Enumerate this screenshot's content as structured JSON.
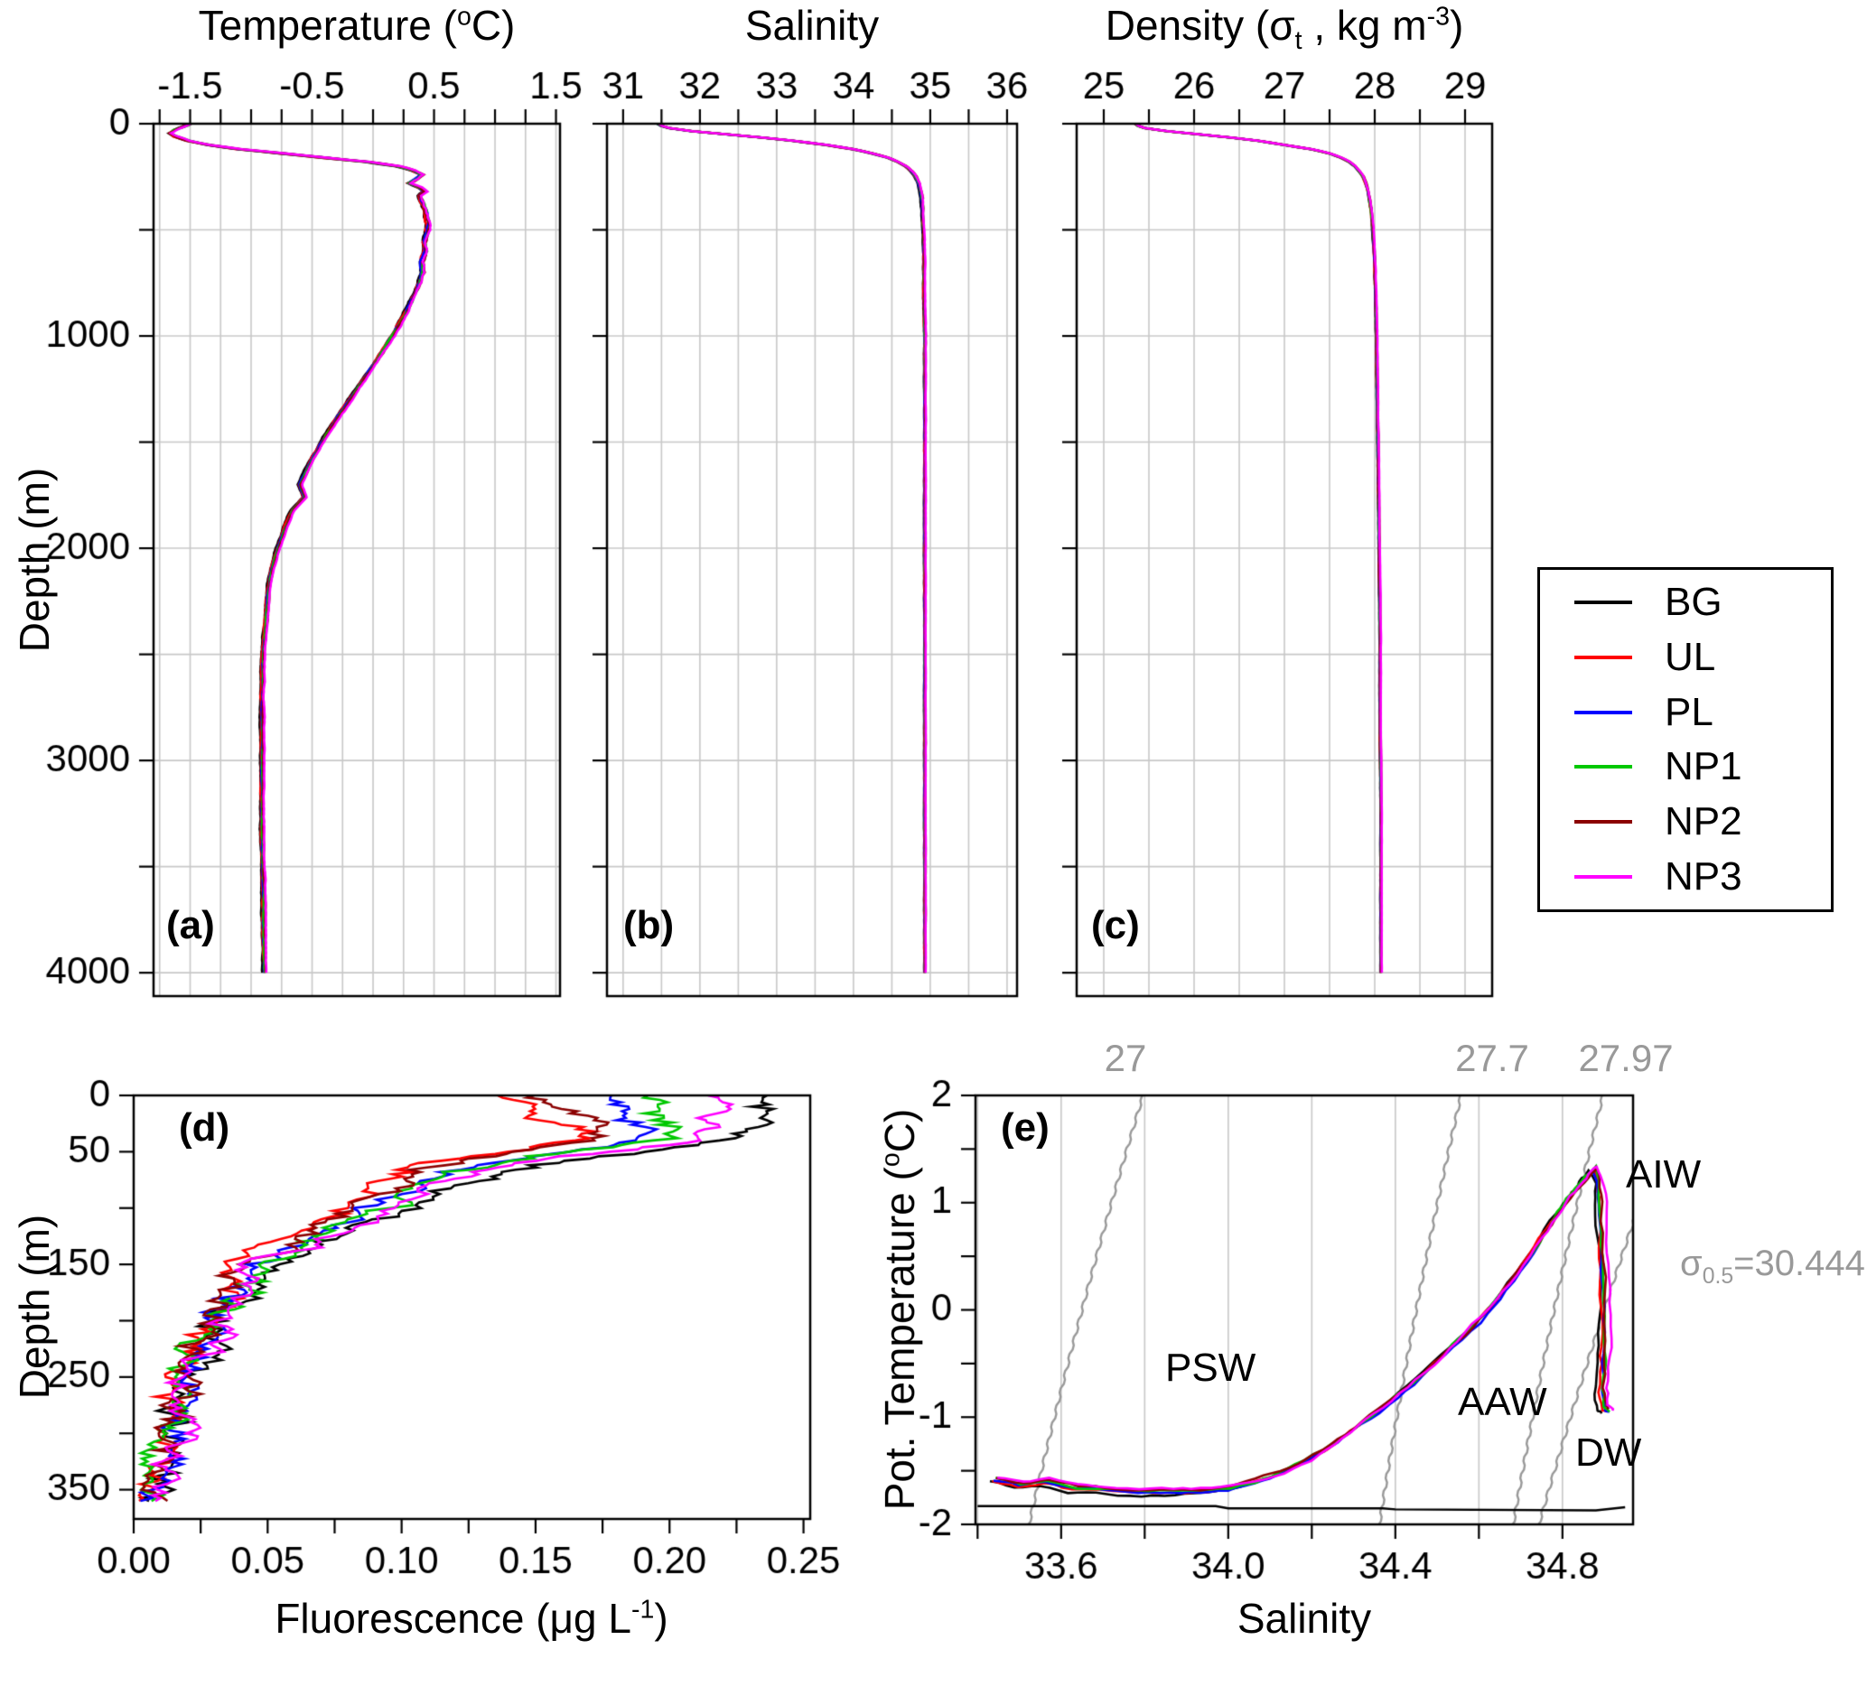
{
  "figure": {
    "bg": "#ffffff",
    "grid_color": "#c8c8c8",
    "axis_color": "#000000",
    "iso_color": "#999999"
  },
  "legend": {
    "entries": [
      {
        "label": "BG",
        "color": "#000000"
      },
      {
        "label": "UL",
        "color": "#ff0000"
      },
      {
        "label": "PL",
        "color": "#0000ff"
      },
      {
        "label": "NP1",
        "color": "#00c800"
      },
      {
        "label": "NP2",
        "color": "#8b0000"
      },
      {
        "label": "NP3",
        "color": "#ff00ff"
      }
    ]
  },
  "labels": {
    "temp_title": {
      "pre": "Temperature (",
      "sup": "o",
      "post": "C)"
    },
    "salinity_title": "Salinity",
    "density_title": {
      "pre": "Density (σ",
      "sub": "t",
      "mid": " , kg m",
      "sup": "-3",
      "post": ")"
    },
    "depth_axis": "Depth (m)",
    "fluor_axis": {
      "pre": "Fluorescence (μg L",
      "sup": "-1",
      "post": ")"
    },
    "pot_temp_axis": {
      "pre": "Pot. Temperature (",
      "sup": "o",
      "post": "C)"
    },
    "salinity_axis": "Salinity",
    "panel_letters": {
      "a": "(a)",
      "b": "(b)",
      "c": "(c)",
      "d": "(d)",
      "e": "(e)"
    },
    "water_masses": {
      "psw": "PSW",
      "aaw": "AAW",
      "aiw": "AIW",
      "dw": "DW"
    },
    "iso_labels": {
      "i27": "27",
      "i277": "27.7",
      "i2797": "27.97"
    },
    "sigma05": {
      "pre": "σ",
      "sub": "0.5",
      "post": "=30.444"
    }
  },
  "chart_data": [
    {
      "id": "a",
      "type": "line",
      "panel": "(a)",
      "title": "Temperature (°C)",
      "ylabel": "Depth (m)",
      "xlim": [
        -1.8,
        1.533
      ],
      "ylim": [
        0,
        4110
      ],
      "x_ticks": [
        [
          -1.5,
          "-1.5"
        ],
        [
          -0.5,
          "-0.5"
        ],
        [
          0.5,
          "0.5"
        ],
        [
          1.5,
          "1.5"
        ]
      ],
      "x_tick_step": 0.25,
      "y_tick_step": 500,
      "y_grid_step": 500,
      "grid": true,
      "y_ticks": [
        [
          0,
          "0"
        ],
        [
          1000,
          "1000"
        ],
        [
          2000,
          "2000"
        ],
        [
          3000,
          "3000"
        ],
        [
          4000,
          "4000"
        ]
      ],
      "series_labels": [
        "BG",
        "UL",
        "PL",
        "NP1",
        "NP2",
        "NP3"
      ],
      "profile": [
        [
          0,
          -1.5
        ],
        [
          15,
          -1.56
        ],
        [
          30,
          -1.63
        ],
        [
          45,
          -1.66
        ],
        [
          60,
          -1.62
        ],
        [
          80,
          -1.52
        ],
        [
          100,
          -1.35
        ],
        [
          120,
          -1.1
        ],
        [
          140,
          -0.75
        ],
        [
          160,
          -0.4
        ],
        [
          180,
          -0.05
        ],
        [
          200,
          0.2
        ],
        [
          220,
          0.33
        ],
        [
          240,
          0.4
        ],
        [
          260,
          0.36
        ],
        [
          280,
          0.3
        ],
        [
          300,
          0.38
        ],
        [
          320,
          0.42
        ],
        [
          340,
          0.38
        ],
        [
          370,
          0.4
        ],
        [
          400,
          0.42
        ],
        [
          440,
          0.44
        ],
        [
          480,
          0.45
        ],
        [
          520,
          0.44
        ],
        [
          560,
          0.42
        ],
        [
          600,
          0.43
        ],
        [
          650,
          0.4
        ],
        [
          700,
          0.41
        ],
        [
          750,
          0.38
        ],
        [
          800,
          0.34
        ],
        [
          850,
          0.3
        ],
        [
          900,
          0.26
        ],
        [
          950,
          0.21
        ],
        [
          1000,
          0.16
        ],
        [
          1100,
          0.05
        ],
        [
          1200,
          -0.07
        ],
        [
          1300,
          -0.19
        ],
        [
          1400,
          -0.31
        ],
        [
          1500,
          -0.42
        ],
        [
          1600,
          -0.52
        ],
        [
          1700,
          -0.6
        ],
        [
          1760,
          -0.56
        ],
        [
          1820,
          -0.66
        ],
        [
          1900,
          -0.72
        ],
        [
          2000,
          -0.78
        ],
        [
          2100,
          -0.83
        ],
        [
          2200,
          -0.86
        ],
        [
          2350,
          -0.88
        ],
        [
          2500,
          -0.9
        ],
        [
          2700,
          -0.91
        ],
        [
          3000,
          -0.91
        ],
        [
          3300,
          -0.91
        ],
        [
          3600,
          -0.9
        ],
        [
          4000,
          -0.89
        ]
      ]
    },
    {
      "id": "b",
      "type": "line",
      "panel": "(b)",
      "title": "Salinity",
      "ylabel": "Depth (m)",
      "xlim": [
        30.79,
        36.13
      ],
      "ylim": [
        0,
        4110
      ],
      "x_ticks": [
        [
          31,
          "31"
        ],
        [
          32,
          "32"
        ],
        [
          33,
          "33"
        ],
        [
          34,
          "34"
        ],
        [
          35,
          "35"
        ],
        [
          36,
          "36"
        ]
      ],
      "x_tick_step": 0.5,
      "y_tick_step": 500,
      "y_grid_step": 500,
      "grid": true,
      "y_ticks": [
        [
          0,
          "0"
        ],
        [
          1000,
          "1000"
        ],
        [
          2000,
          "2000"
        ],
        [
          3000,
          "3000"
        ],
        [
          4000,
          "4000"
        ]
      ],
      "series_labels": [
        "BG",
        "UL",
        "PL",
        "NP1",
        "NP2",
        "NP3"
      ],
      "profile": [
        [
          0,
          31.45
        ],
        [
          10,
          31.5
        ],
        [
          20,
          31.6
        ],
        [
          35,
          31.9
        ],
        [
          50,
          32.35
        ],
        [
          65,
          32.8
        ],
        [
          80,
          33.2
        ],
        [
          100,
          33.65
        ],
        [
          120,
          34.0
        ],
        [
          140,
          34.25
        ],
        [
          160,
          34.45
        ],
        [
          180,
          34.58
        ],
        [
          200,
          34.68
        ],
        [
          225,
          34.76
        ],
        [
          250,
          34.81
        ],
        [
          280,
          34.85
        ],
        [
          310,
          34.87
        ],
        [
          350,
          34.89
        ],
        [
          400,
          34.9
        ],
        [
          500,
          34.91
        ],
        [
          650,
          34.92
        ],
        [
          800,
          34.92
        ],
        [
          1000,
          34.93
        ],
        [
          1300,
          34.93
        ],
        [
          1600,
          34.93
        ],
        [
          2000,
          34.93
        ],
        [
          2400,
          34.93
        ],
        [
          2800,
          34.93
        ],
        [
          3200,
          34.93
        ],
        [
          3600,
          34.93
        ],
        [
          4000,
          34.93
        ]
      ]
    },
    {
      "id": "c",
      "type": "line",
      "panel": "(c)",
      "title": "Density (σt , kg m⁻³)",
      "ylabel": "Depth (m)",
      "xlim": [
        24.7,
        29.3
      ],
      "ylim": [
        0,
        4110
      ],
      "x_ticks": [
        [
          25,
          "25"
        ],
        [
          26,
          "26"
        ],
        [
          27,
          "27"
        ],
        [
          28,
          "28"
        ],
        [
          29,
          "29"
        ]
      ],
      "x_tick_step": 0.5,
      "y_tick_step": 500,
      "y_grid_step": 500,
      "grid": true,
      "y_ticks": [
        [
          0,
          "0"
        ],
        [
          1000,
          "1000"
        ],
        [
          2000,
          "2000"
        ],
        [
          3000,
          "3000"
        ],
        [
          4000,
          "4000"
        ]
      ],
      "series_labels": [
        "BG",
        "UL",
        "PL",
        "NP1",
        "NP2",
        "NP3"
      ],
      "profile": [
        [
          0,
          25.35
        ],
        [
          10,
          25.38
        ],
        [
          20,
          25.45
        ],
        [
          35,
          25.7
        ],
        [
          50,
          26.05
        ],
        [
          65,
          26.4
        ],
        [
          80,
          26.7
        ],
        [
          100,
          27.0
        ],
        [
          120,
          27.3
        ],
        [
          140,
          27.5
        ],
        [
          160,
          27.63
        ],
        [
          180,
          27.72
        ],
        [
          200,
          27.78
        ],
        [
          225,
          27.83
        ],
        [
          250,
          27.87
        ],
        [
          280,
          27.9
        ],
        [
          310,
          27.92
        ],
        [
          350,
          27.94
        ],
        [
          400,
          27.96
        ],
        [
          500,
          27.98
        ],
        [
          650,
          28.0
        ],
        [
          800,
          28.01
        ],
        [
          1000,
          28.02
        ],
        [
          1300,
          28.03
        ],
        [
          1600,
          28.04
        ],
        [
          2000,
          28.05
        ],
        [
          2400,
          28.06
        ],
        [
          2800,
          28.06
        ],
        [
          3200,
          28.07
        ],
        [
          3600,
          28.07
        ],
        [
          4000,
          28.07
        ]
      ]
    },
    {
      "id": "d",
      "type": "line",
      "panel": "(d)",
      "xlabel": "Fluorescence (μg L⁻¹)",
      "ylabel": "Depth (m)",
      "xlim": [
        0,
        0.2525
      ],
      "ylim": [
        0,
        376
      ],
      "x_ticks": [
        [
          0,
          "0.00"
        ],
        [
          0.05,
          "0.05"
        ],
        [
          0.1,
          "0.10"
        ],
        [
          0.15,
          "0.15"
        ],
        [
          0.2,
          "0.20"
        ],
        [
          0.25,
          "0.25"
        ]
      ],
      "x_tick_step": 0.025,
      "y_tick_step": 50,
      "grid": false,
      "y_ticks": [
        [
          0,
          "0"
        ],
        [
          50,
          "50"
        ],
        [
          150,
          "150"
        ],
        [
          250,
          "250"
        ],
        [
          350,
          "350"
        ]
      ],
      "series_labels": [
        "BG",
        "UL",
        "PL",
        "NP1",
        "NP2",
        "NP3"
      ],
      "profile": [
        [
          0,
          0.185
        ],
        [
          8,
          0.19
        ],
        [
          16,
          0.193
        ],
        [
          24,
          0.198
        ],
        [
          32,
          0.2
        ],
        [
          40,
          0.193
        ],
        [
          48,
          0.17
        ],
        [
          56,
          0.145
        ],
        [
          64,
          0.125
        ],
        [
          72,
          0.113
        ],
        [
          80,
          0.105
        ],
        [
          90,
          0.098
        ],
        [
          100,
          0.09
        ],
        [
          110,
          0.081
        ],
        [
          120,
          0.071
        ],
        [
          130,
          0.062
        ],
        [
          140,
          0.054
        ],
        [
          150,
          0.047
        ],
        [
          160,
          0.043
        ],
        [
          170,
          0.04
        ],
        [
          180,
          0.037
        ],
        [
          190,
          0.034
        ],
        [
          200,
          0.031
        ],
        [
          215,
          0.028
        ],
        [
          230,
          0.025
        ],
        [
          245,
          0.022
        ],
        [
          260,
          0.019
        ],
        [
          280,
          0.016
        ],
        [
          300,
          0.013
        ],
        [
          320,
          0.011
        ],
        [
          340,
          0.01
        ],
        [
          360,
          0.009
        ]
      ]
    },
    {
      "id": "e",
      "type": "line",
      "panel": "(e)",
      "xlabel": "Salinity",
      "ylabel": "Pot. Temperature (°C)",
      "xlim": [
        33.395,
        34.969
      ],
      "ylim": [
        -2,
        2
      ],
      "x_ticks": [
        [
          33.6,
          "33.6"
        ],
        [
          34.0,
          "34.0"
        ],
        [
          34.4,
          "34.4"
        ],
        [
          34.8,
          "34.8"
        ]
      ],
      "x_tick_step": 0.2,
      "y_tick_step": 0.5,
      "grid": true,
      "y_ticks": [
        [
          -2,
          "-2"
        ],
        [
          -1,
          "-1"
        ],
        [
          0,
          "0"
        ],
        [
          1,
          "1"
        ],
        [
          2,
          "2"
        ]
      ],
      "series_labels": [
        "BG",
        "UL",
        "PL",
        "NP1",
        "NP2",
        "NP3"
      ],
      "ts_curve": [
        [
          33.44,
          -1.58
        ],
        [
          33.5,
          -1.63
        ],
        [
          33.56,
          -1.6
        ],
        [
          33.63,
          -1.66
        ],
        [
          33.7,
          -1.68
        ],
        [
          33.78,
          -1.7
        ],
        [
          33.86,
          -1.7
        ],
        [
          33.93,
          -1.69
        ],
        [
          34.0,
          -1.67
        ],
        [
          34.06,
          -1.61
        ],
        [
          34.12,
          -1.53
        ],
        [
          34.18,
          -1.42
        ],
        [
          34.24,
          -1.28
        ],
        [
          34.3,
          -1.12
        ],
        [
          34.36,
          -0.95
        ],
        [
          34.42,
          -0.75
        ],
        [
          34.48,
          -0.55
        ],
        [
          34.54,
          -0.33
        ],
        [
          34.6,
          -0.1
        ],
        [
          34.65,
          0.12
        ],
        [
          34.7,
          0.38
        ],
        [
          34.74,
          0.62
        ],
        [
          34.78,
          0.85
        ],
        [
          34.81,
          1.02
        ],
        [
          34.84,
          1.16
        ],
        [
          34.86,
          1.26
        ],
        [
          34.875,
          1.32
        ],
        [
          34.885,
          1.2
        ],
        [
          34.89,
          1.0
        ],
        [
          34.893,
          0.7
        ],
        [
          34.896,
          0.4
        ],
        [
          34.9,
          0.05
        ],
        [
          34.9,
          -0.3
        ],
        [
          34.9,
          -0.55
        ],
        [
          34.897,
          -0.75
        ],
        [
          34.9,
          -0.92
        ],
        [
          34.91,
          -0.95
        ]
      ],
      "freezing_line": [
        [
          33.4,
          -1.83
        ],
        [
          33.97,
          -1.83
        ],
        [
          34.0,
          -1.85
        ],
        [
          34.37,
          -1.85
        ],
        [
          34.4,
          -1.86
        ],
        [
          34.88,
          -1.87
        ],
        [
          34.95,
          -1.84
        ]
      ],
      "isopycnals": [
        {
          "label": "27",
          "s_at_minus2": 33.52,
          "s_at_plus2": 33.8
        },
        {
          "label": "27.7",
          "s_at_minus2": 34.36,
          "s_at_plus2": 34.56
        },
        {
          "label": "27.97",
          "s_at_minus2": 34.68,
          "s_at_plus2": 34.9
        },
        {
          "label": "σ0.5=30.444",
          "s_at_minus2": 34.74,
          "s_at_plus2": 35.08
        }
      ],
      "water_masses": [
        "PSW",
        "AAW",
        "AIW",
        "DW"
      ]
    }
  ]
}
